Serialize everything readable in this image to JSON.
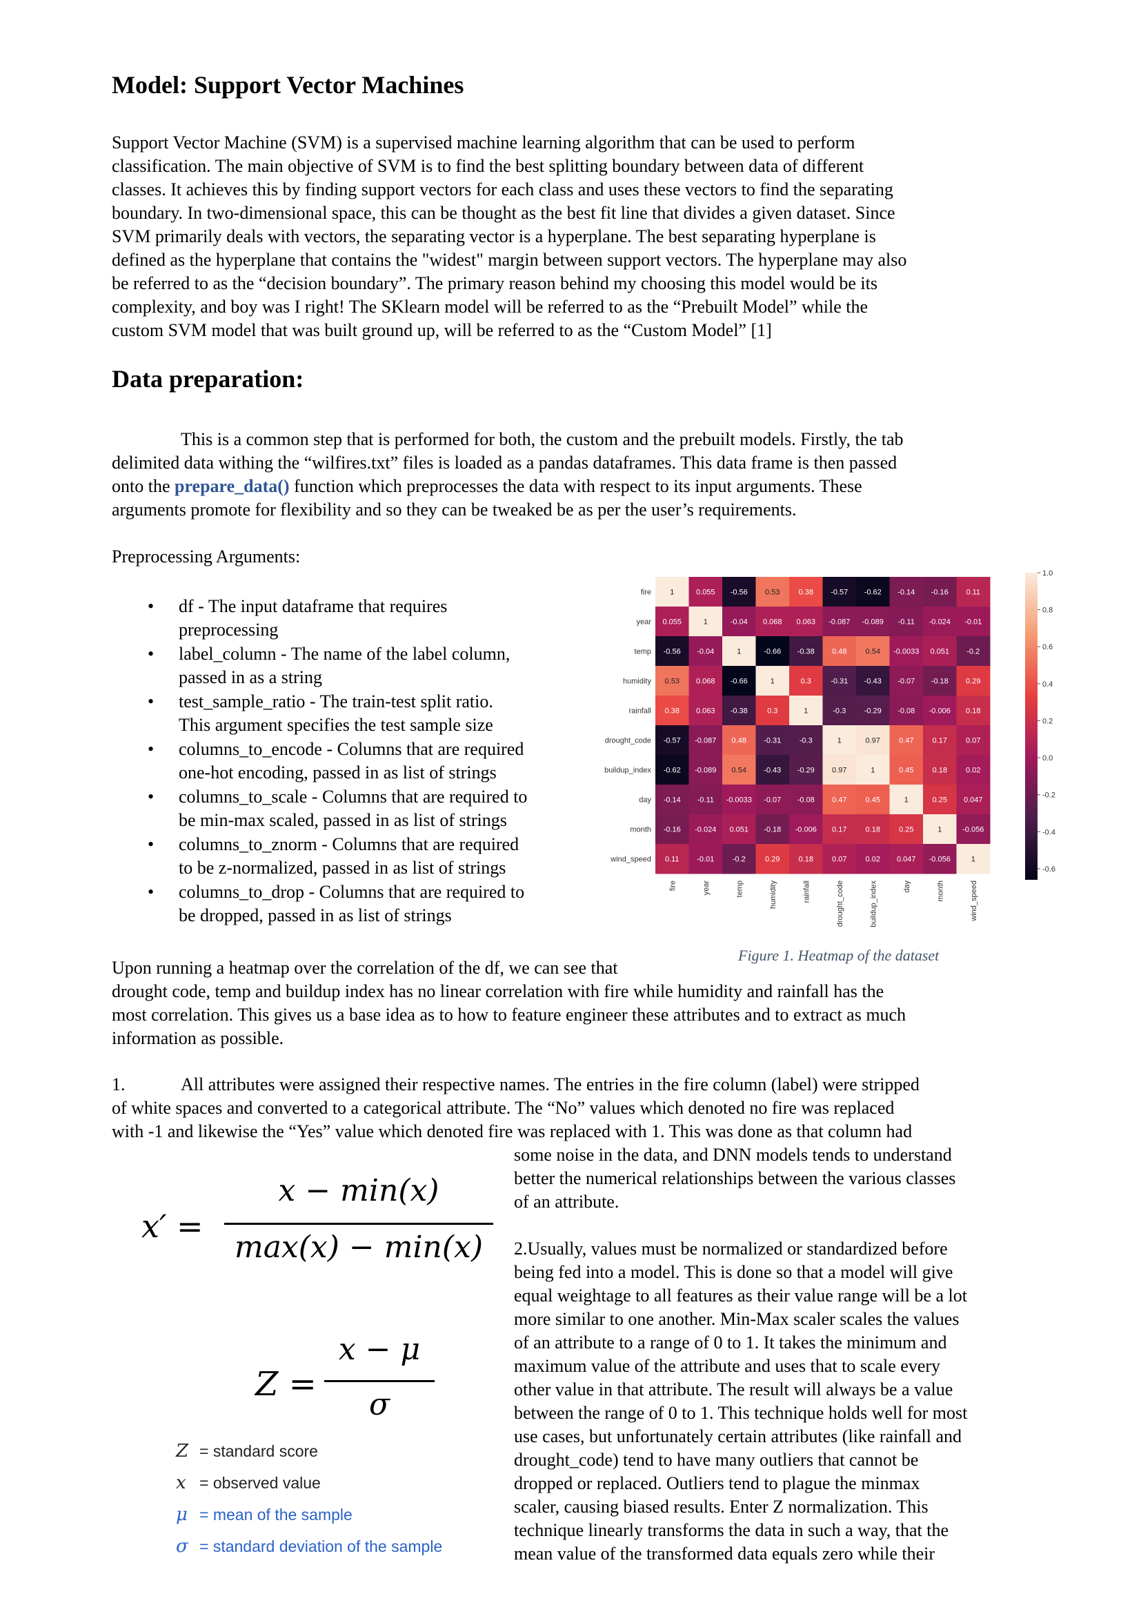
{
  "heading_model": "Model: Support Vector Machines",
  "intro_paragraph": [
    "Support Vector Machine (SVM) is a supervised machine learning algorithm that can be used to perform",
    "classification. The main objective of SVM is to find the best splitting boundary between data of different",
    "classes. It achieves this by finding support vectors for each class and uses these vectors to find the separating",
    "boundary. In two-dimensional space, this can be thought as the best fit line that divides a given dataset. Since",
    "SVM primarily deals with vectors, the separating vector is a hyperplane. The best separating hyperplane is",
    "defined as the hyperplane that contains the \"widest\" margin between support vectors. The hyperplane may also",
    "be referred to as the “decision boundary”.  The primary reason behind my choosing this model would be its",
    "complexity, and boy was I right! The SKlearn model will be referred to as the “Prebuilt Model” while the",
    "custom SVM model that was built ground up, will be referred to as the “Custom Model” [1]"
  ],
  "heading_data_prep": "Data preparation:",
  "prep_para": {
    "line1": "This is a common step that is performed for both, the custom and the prebuilt models. Firstly, the tab",
    "line2": "delimited data withing the “wilfires.txt” files is loaded as a pandas dataframes. This data frame is then passed",
    "line3_before": "onto the ",
    "line3_code": "prepare_data()",
    "line3_after": " function which preprocesses the data with respect to its input arguments. These",
    "line4": "arguments promote for flexibility and so they can be tweaked be as per the user’s requirements."
  },
  "preprocessing_label": "Preprocessing Arguments:",
  "bullet_symbol": "•",
  "bullets": [
    [
      "df - The input dataframe that requires",
      "preprocessing"
    ],
    [
      "label_column - The name of the label column,",
      "passed in as a string"
    ],
    [
      "test_sample_ratio - The train-test split ratio.",
      "This argument specifies the test sample size"
    ],
    [
      "columns_to_encode - Columns that are required",
      "one-hot encoding, passed in as list of strings"
    ],
    [
      "columns_to_scale - Columns that are required to",
      "be min-max scaled, passed in as list of strings"
    ],
    [
      "columns_to_znorm - Columns that are required",
      "to be z-normalized, passed in as list of strings"
    ],
    [
      "columns_to_drop - Columns that are required to",
      "be dropped, passed in as list of strings"
    ]
  ],
  "figure_caption": "Figure 1. Heatmap of the dataset",
  "heatmap_paragraph": {
    "line1": "Upon running a heatmap over the correlation of the df, we can see that",
    "line2": "drought code, temp and buildup index has no linear correlation with fire while humidity and rainfall has the",
    "line3": "most correlation. This gives us a base idea as to how to feature engineer these attributes and to extract as much",
    "line4": "information as possible."
  },
  "step1": {
    "number": "1.",
    "line1": "All attributes were assigned their respective names. The entries in the fire column (label) were stripped",
    "line2": "of white spaces and converted to a categorical attribute. The “No” values which denoted no fire was replaced",
    "line3": "with -1 and likewise the “Yes” value which denoted fire was replaced with 1. This was done as that column had",
    "right_lines": [
      "some noise in the data, and DNN models tends to understand",
      "better the numerical relationships between the various classes",
      "of an attribute."
    ]
  },
  "step2_lines": [
    "2.Usually, values must be normalized or standardized before",
    "being fed into a model. This is done so that a model will give",
    "equal weightage to all features as their value range will be a lot",
    "more similar to one another. Min-Max scaler scales the values",
    "of an attribute to a range of 0 to 1. It takes the minimum and",
    "maximum value of the attribute and uses that to scale every",
    "other value in that attribute. The result will always be a value",
    "between the range of 0 to 1. This technique holds well for most",
    "use cases, but unfortunately certain attributes (like rainfall and",
    "drought_code) tend to have many outliers that cannot be",
    "dropped or replaced. Outliers tend to plague the minmax",
    "scaler, causing biased results. Enter Z normalization. This",
    "technique linearly transforms the data in such a way, that the",
    "mean value of the transformed data equals zero while their"
  ],
  "formula_minmax": {
    "lhs": "x′ =",
    "numerator": "x − min(x)",
    "denominator": "max(x) − min(x)"
  },
  "formula_z": {
    "lhs": "Z =",
    "numerator": "x − μ",
    "denominator": "σ"
  },
  "z_legend": [
    {
      "symbol": "Z",
      "text": "= standard score",
      "color": "#222222"
    },
    {
      "symbol": "x",
      "text": "= observed value",
      "color": "#222222"
    },
    {
      "symbol": "μ",
      "text": "= mean of the sample",
      "color": "#2a62c9"
    },
    {
      "symbol": "σ",
      "text": "= standard deviation of the sample",
      "color": "#2a62c9"
    }
  ],
  "chart_data": {
    "type": "heatmap",
    "row_labels": [
      "fire",
      "year",
      "temp",
      "humidity",
      "rainfall",
      "drought_code",
      "buildup_index",
      "day",
      "month",
      "wind_speed"
    ],
    "col_labels": [
      "fire",
      "year",
      "temp",
      "humidity",
      "rainfall",
      "drought_code",
      "buildup_index",
      "day",
      "month",
      "wind_speed"
    ],
    "values": [
      [
        1,
        0.055,
        -0.56,
        0.53,
        0.38,
        -0.57,
        -0.62,
        -0.14,
        -0.16,
        0.11
      ],
      [
        0.055,
        1,
        -0.04,
        0.068,
        0.063,
        -0.087,
        -0.089,
        -0.11,
        -0.024,
        -0.01
      ],
      [
        -0.56,
        -0.04,
        1,
        -0.66,
        -0.38,
        0.48,
        0.54,
        -0.0033,
        0.051,
        -0.2
      ],
      [
        0.53,
        0.068,
        -0.66,
        1,
        0.3,
        -0.31,
        -0.43,
        -0.07,
        -0.18,
        0.29
      ],
      [
        0.38,
        0.063,
        -0.38,
        0.3,
        1,
        -0.3,
        -0.29,
        -0.08,
        -0.006,
        0.18
      ],
      [
        -0.57,
        -0.087,
        0.48,
        -0.31,
        -0.3,
        1,
        0.97,
        0.47,
        0.17,
        0.07
      ],
      [
        -0.62,
        -0.089,
        0.54,
        -0.43,
        -0.29,
        0.97,
        1,
        0.45,
        0.18,
        0.02
      ],
      [
        -0.14,
        -0.11,
        -0.0033,
        -0.07,
        -0.08,
        0.47,
        0.45,
        1,
        0.25,
        0.047
      ],
      [
        -0.16,
        -0.024,
        0.051,
        -0.18,
        -0.006,
        0.17,
        0.18,
        0.25,
        1,
        -0.056
      ],
      [
        0.11,
        -0.01,
        -0.2,
        0.29,
        0.18,
        0.07,
        0.02,
        0.047,
        -0.056,
        1
      ]
    ],
    "cell_labels": [
      [
        "1",
        "0.055",
        "-0.56",
        "0.53",
        "0.38",
        "-0.57",
        "-0.62",
        "-0.14",
        "-0.16",
        "0.11"
      ],
      [
        "0.055",
        "1",
        "-0.04",
        "0.068",
        "0.063",
        "-0.087",
        "-0.089",
        "-0.11",
        "-0.024",
        "-0.01"
      ],
      [
        "-0.56",
        "-0.04",
        "1",
        "-0.66",
        "-0.38",
        "0.48",
        "0.54",
        "-0.0033",
        "0.051",
        "-0.2"
      ],
      [
        "0.53",
        "0.068",
        "-0.66",
        "1",
        "0.3",
        "-0.31",
        "-0.43",
        "-0.07",
        "-0.18",
        "0.29"
      ],
      [
        "0.38",
        "0.063",
        "-0.38",
        "0.3",
        "1",
        "-0.3",
        "-0.29",
        "-0.08",
        "-0.006",
        "0.18"
      ],
      [
        "-0.57",
        "-0.087",
        "0.48",
        "-0.31",
        "-0.3",
        "1",
        "0.97",
        "0.47",
        "0.17",
        "0.07"
      ],
      [
        "-0.62",
        "-0.089",
        "0.54",
        "-0.43",
        "-0.29",
        "0.97",
        "1",
        "0.45",
        "0.18",
        "0.02"
      ],
      [
        "-0.14",
        "-0.11",
        "-0.0033",
        "-0.07",
        "-0.08",
        "0.47",
        "0.45",
        "1",
        "0.25",
        "0.047"
      ],
      [
        "-0.16",
        "-0.024",
        "0.051",
        "-0.18",
        "-0.006",
        "0.17",
        "0.18",
        "0.25",
        "1",
        "-0.056"
      ],
      [
        "0.11",
        "-0.01",
        "-0.2",
        "0.29",
        "0.18",
        "0.07",
        "0.02",
        "0.047",
        "-0.056",
        "1"
      ]
    ],
    "vmin": -0.66,
    "vmax": 1.0,
    "colorbar_ticks": [
      "1.0",
      "0.8",
      "0.6",
      "0.4",
      "0.2",
      "0.0",
      "-0.2",
      "-0.4",
      "-0.6"
    ],
    "colorbar_tick_values": [
      1.0,
      0.8,
      0.6,
      0.4,
      0.2,
      0.0,
      -0.2,
      -0.4,
      -0.6
    ],
    "colormap": "rocket",
    "colormap_stops": [
      "#03051a",
      "#4c1d4b",
      "#a11a5b",
      "#e83f3f",
      "#f69c73",
      "#faebdd"
    ]
  }
}
